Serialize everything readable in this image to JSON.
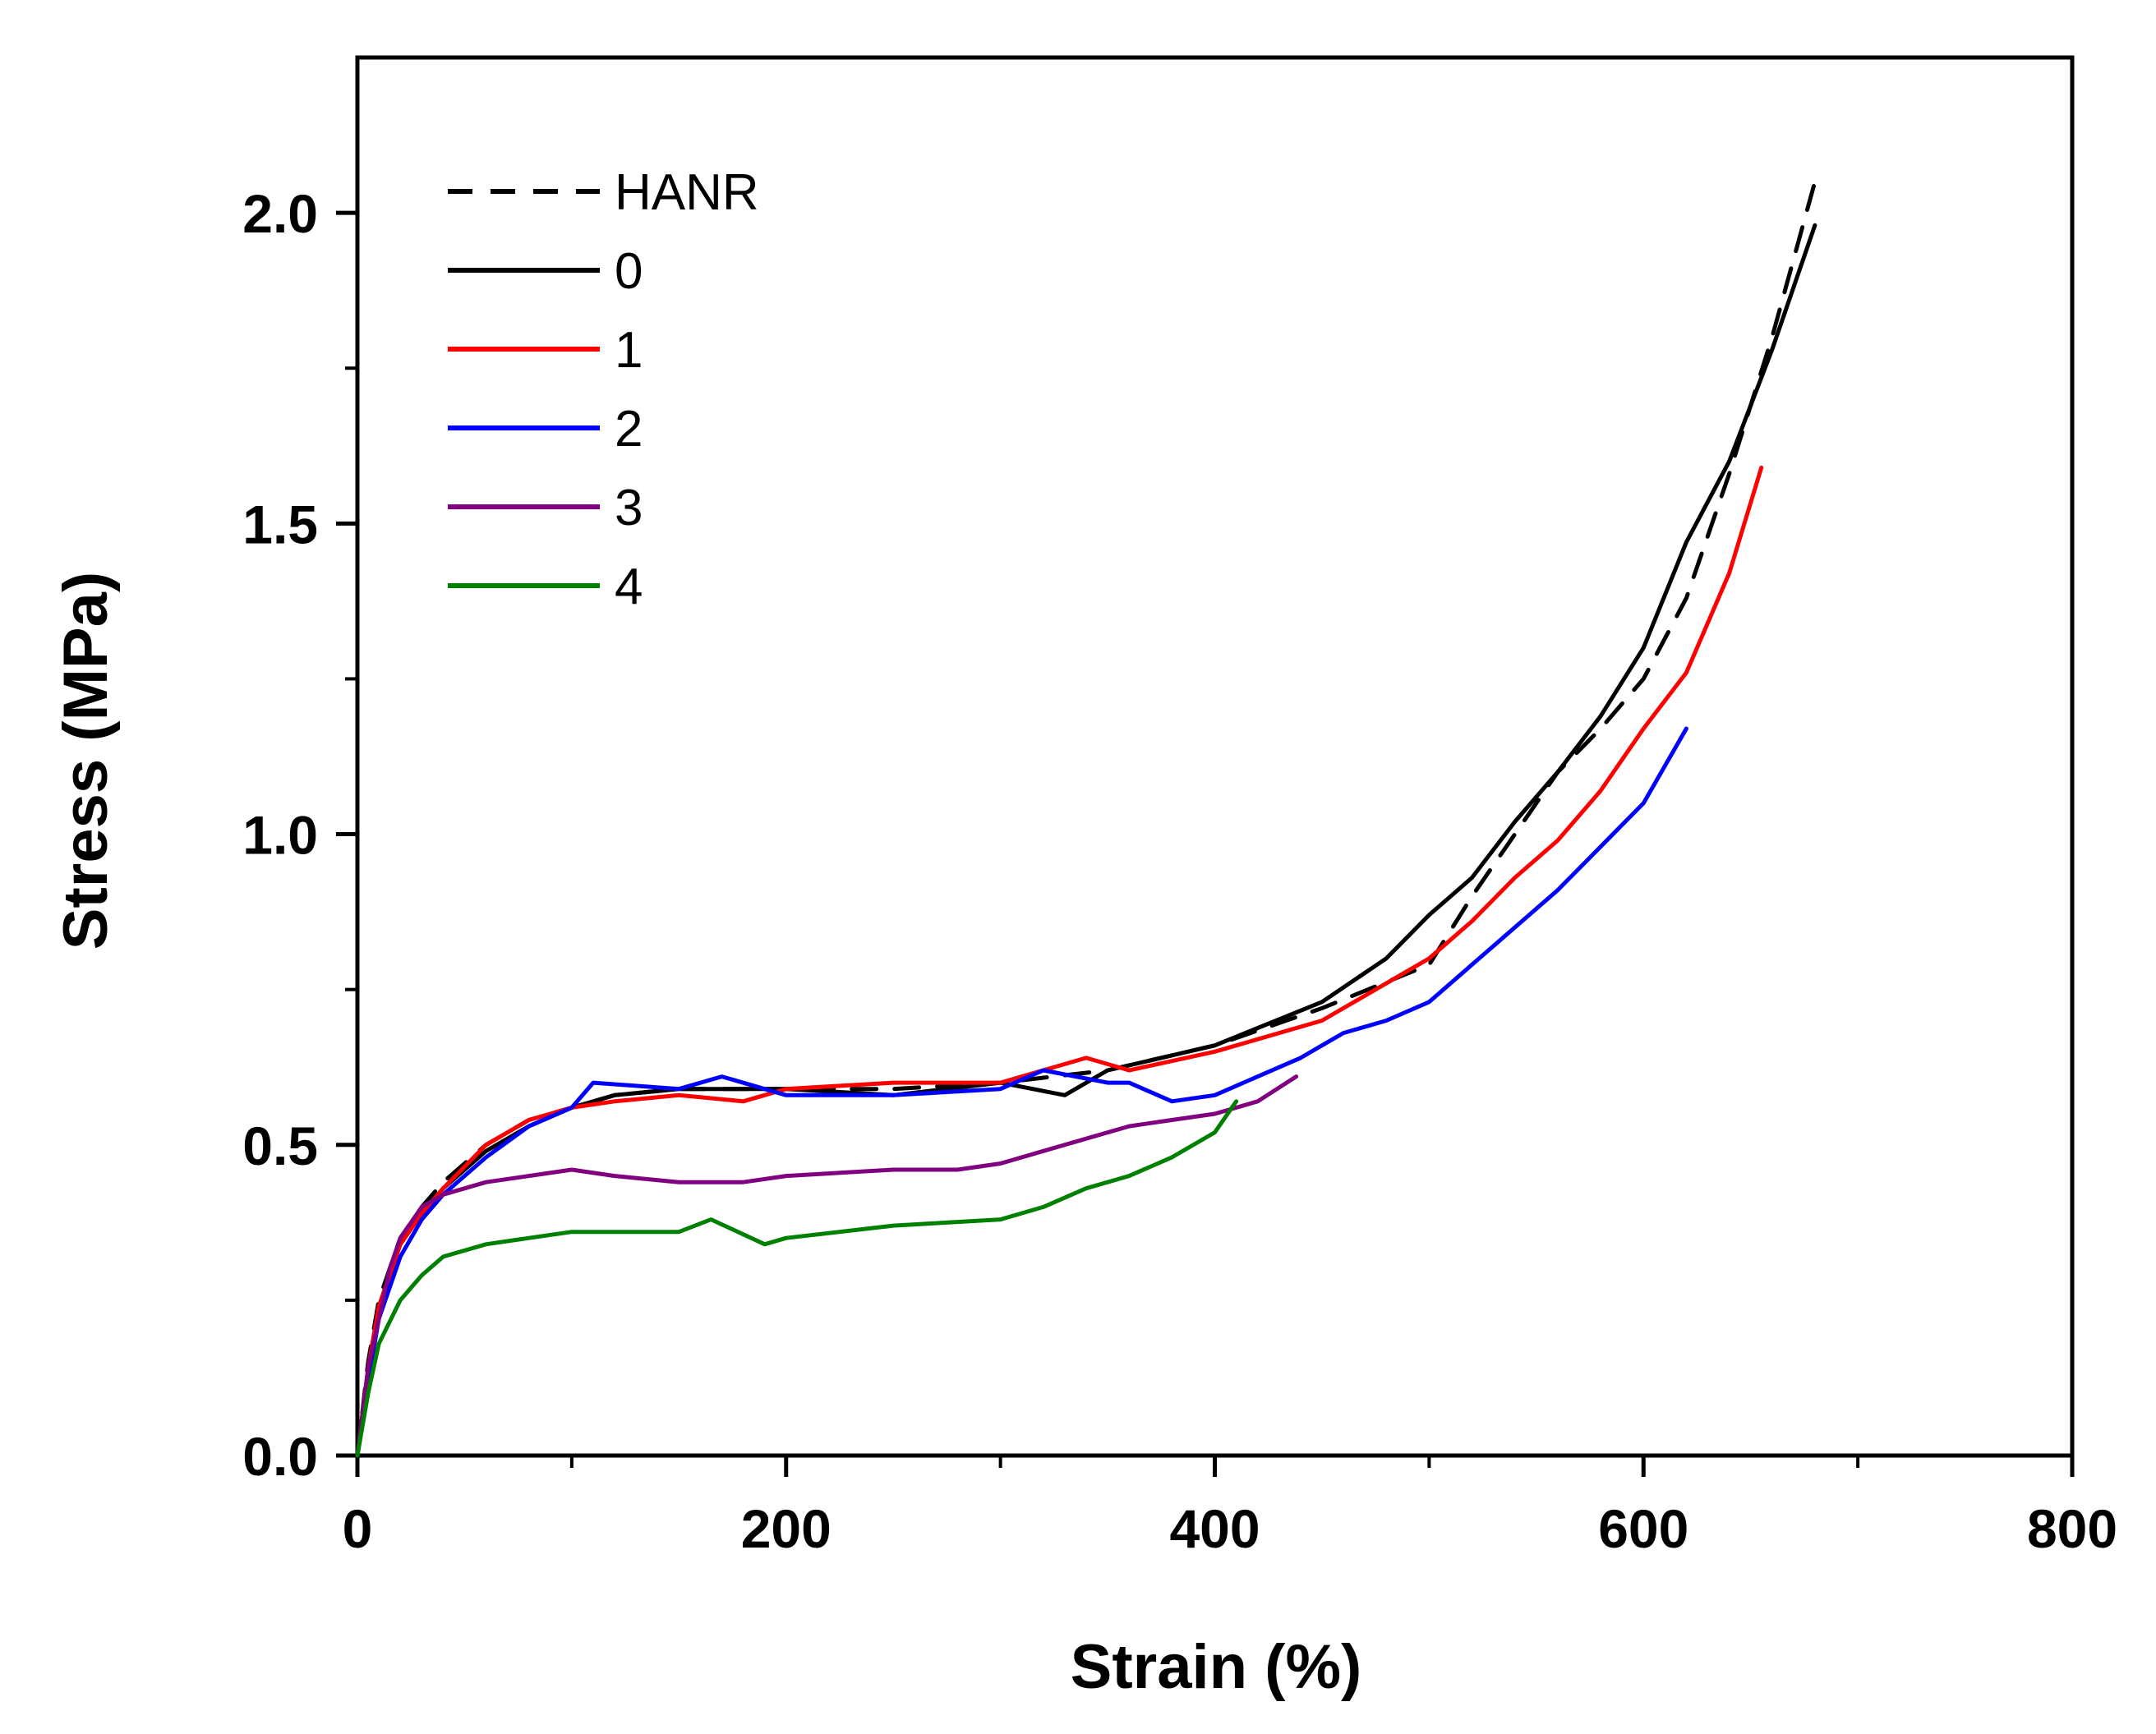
{
  "chart_data": {
    "type": "line",
    "title": "",
    "xlabel": "Strain (%)",
    "ylabel": "Stress (MPa)",
    "xlim": [
      0,
      800
    ],
    "ylim": [
      0,
      2.25
    ],
    "xticks": [
      0,
      200,
      400,
      600,
      800
    ],
    "xtick_labels": [
      "0",
      "200",
      "400",
      "600",
      "800"
    ],
    "yticks": [
      0,
      0.5,
      1.0,
      1.5,
      2.0
    ],
    "ytick_labels": [
      "0.0",
      "0.5",
      "1.0",
      "1.5",
      "2.0"
    ],
    "grid": false,
    "legend_position": "top-left",
    "series": [
      {
        "name": "HANR",
        "color": "#000000",
        "dash": true,
        "x": [
          0,
          5,
          10,
          20,
          30,
          40,
          60,
          80,
          100,
          120,
          150,
          200,
          250,
          300,
          350,
          400,
          450,
          500,
          520,
          540,
          560,
          580,
          600,
          620,
          640,
          660,
          680
        ],
        "y": [
          0,
          0.15,
          0.25,
          0.35,
          0.4,
          0.44,
          0.5,
          0.54,
          0.56,
          0.58,
          0.59,
          0.59,
          0.59,
          0.6,
          0.62,
          0.66,
          0.72,
          0.79,
          0.9,
          1.0,
          1.1,
          1.17,
          1.25,
          1.38,
          1.58,
          1.8,
          2.05
        ]
      },
      {
        "name": "0",
        "color": "#000000",
        "dash": false,
        "x": [
          0,
          5,
          10,
          20,
          30,
          40,
          60,
          80,
          100,
          120,
          150,
          200,
          250,
          300,
          330,
          350,
          400,
          450,
          480,
          500,
          520,
          540,
          560,
          580,
          600,
          620,
          640,
          660,
          680
        ],
        "y": [
          0,
          0.14,
          0.24,
          0.34,
          0.39,
          0.43,
          0.49,
          0.53,
          0.56,
          0.58,
          0.59,
          0.59,
          0.58,
          0.6,
          0.58,
          0.62,
          0.66,
          0.73,
          0.8,
          0.87,
          0.93,
          1.02,
          1.1,
          1.19,
          1.3,
          1.47,
          1.6,
          1.78,
          1.98
        ]
      },
      {
        "name": "1",
        "color": "#ff0000",
        "dash": false,
        "x": [
          0,
          5,
          10,
          20,
          30,
          40,
          60,
          80,
          100,
          120,
          150,
          180,
          200,
          250,
          300,
          340,
          360,
          400,
          450,
          500,
          520,
          540,
          560,
          580,
          600,
          620,
          640,
          655
        ],
        "y": [
          0,
          0.14,
          0.24,
          0.34,
          0.39,
          0.43,
          0.5,
          0.54,
          0.56,
          0.57,
          0.58,
          0.57,
          0.59,
          0.6,
          0.6,
          0.64,
          0.62,
          0.65,
          0.7,
          0.8,
          0.86,
          0.93,
          0.99,
          1.07,
          1.17,
          1.26,
          1.42,
          1.59
        ]
      },
      {
        "name": "2",
        "color": "#0000ff",
        "dash": false,
        "x": [
          0,
          5,
          10,
          20,
          30,
          40,
          60,
          80,
          100,
          110,
          150,
          170,
          200,
          250,
          300,
          320,
          350,
          360,
          380,
          400,
          420,
          440,
          460,
          480,
          500,
          520,
          540,
          560,
          580,
          600,
          620
        ],
        "y": [
          0,
          0.12,
          0.22,
          0.32,
          0.38,
          0.42,
          0.48,
          0.53,
          0.56,
          0.6,
          0.59,
          0.61,
          0.58,
          0.58,
          0.59,
          0.62,
          0.6,
          0.6,
          0.57,
          0.58,
          0.61,
          0.64,
          0.68,
          0.7,
          0.73,
          0.79,
          0.85,
          0.91,
          0.98,
          1.05,
          1.17
        ]
      },
      {
        "name": "3",
        "color": "#800080",
        "dash": false,
        "x": [
          0,
          5,
          10,
          15,
          20,
          30,
          40,
          60,
          80,
          100,
          120,
          150,
          180,
          200,
          250,
          280,
          300,
          320,
          340,
          360,
          380,
          400,
          420,
          438
        ],
        "y": [
          0,
          0.14,
          0.22,
          0.3,
          0.35,
          0.4,
          0.42,
          0.44,
          0.45,
          0.46,
          0.45,
          0.44,
          0.44,
          0.45,
          0.46,
          0.46,
          0.47,
          0.49,
          0.51,
          0.53,
          0.54,
          0.55,
          0.57,
          0.61
        ]
      },
      {
        "name": "4",
        "color": "#008000",
        "dash": false,
        "x": [
          0,
          5,
          10,
          20,
          30,
          40,
          60,
          80,
          100,
          120,
          150,
          165,
          190,
          200,
          250,
          300,
          320,
          340,
          360,
          380,
          400,
          410
        ],
        "y": [
          0,
          0.1,
          0.18,
          0.25,
          0.29,
          0.32,
          0.34,
          0.35,
          0.36,
          0.36,
          0.36,
          0.38,
          0.34,
          0.35,
          0.37,
          0.38,
          0.4,
          0.43,
          0.45,
          0.48,
          0.52,
          0.57
        ]
      }
    ]
  }
}
